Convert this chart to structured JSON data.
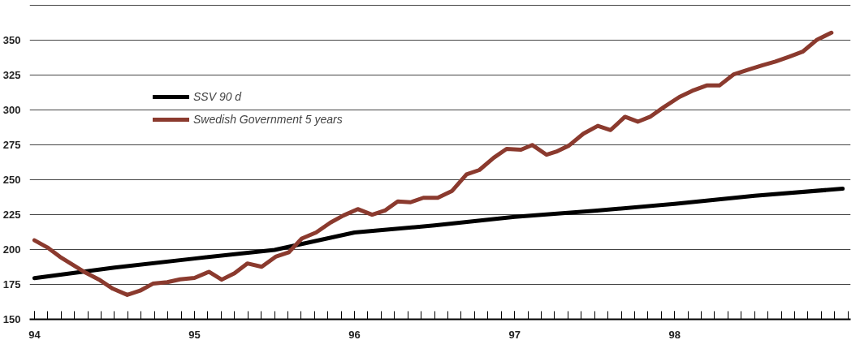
{
  "chart_data": {
    "type": "line",
    "xlim": [
      93.97,
      99.1
    ],
    "ylim": [
      150,
      376
    ],
    "xticks": [
      {
        "value": 94,
        "label": "94"
      },
      {
        "value": 95,
        "label": "95"
      },
      {
        "value": 96,
        "label": "96"
      },
      {
        "value": 97,
        "label": "97"
      },
      {
        "value": 98,
        "label": "98"
      }
    ],
    "yticks": [
      150,
      175,
      200,
      225,
      250,
      275,
      300,
      325,
      350,
      {
        "value": 375,
        "label": null
      }
    ],
    "grid": "y",
    "legend": "top left",
    "line_style": "solid",
    "marker": "none",
    "series": [
      {
        "name": "SSV 90 d",
        "color": "#000000",
        "x": [
          94.0,
          94.5,
          95.0,
          95.5,
          96.0,
          96.5,
          97.0,
          97.5,
          98.0,
          98.5,
          99.05
        ],
        "values": [
          179.5,
          187,
          193.5,
          199.7,
          212.2,
          217.2,
          223.4,
          227.7,
          232.7,
          238.5,
          243.5
        ]
      },
      {
        "name": "Swedish Government 5 years",
        "color": "#8b3a2e",
        "x": [
          94.0,
          94.08,
          94.16,
          94.24,
          94.32,
          94.41,
          94.49,
          94.58,
          94.66,
          94.74,
          94.83,
          94.91,
          95.0,
          95.09,
          95.17,
          95.25,
          95.33,
          95.42,
          95.51,
          95.59,
          95.67,
          95.76,
          95.85,
          95.93,
          96.02,
          96.11,
          96.19,
          96.27,
          96.35,
          96.43,
          96.52,
          96.61,
          96.7,
          96.78,
          96.87,
          96.95,
          97.04,
          97.11,
          97.2,
          97.26,
          97.34,
          97.43,
          97.52,
          97.6,
          97.69,
          97.77,
          97.85,
          97.93,
          98.03,
          98.11,
          98.2,
          98.28,
          98.37,
          98.46,
          98.55,
          98.63,
          98.72,
          98.8,
          98.89,
          98.98
        ],
        "values": [
          206.6,
          201.5,
          194.7,
          189,
          183.4,
          178,
          171.9,
          167.5,
          170.5,
          175.5,
          176.6,
          178.6,
          179.6,
          184,
          178.4,
          183,
          190,
          187.6,
          195,
          198,
          207.8,
          212.2,
          219.3,
          224.3,
          228.9,
          224.9,
          227.9,
          234.4,
          233.8,
          237,
          237,
          242,
          253.8,
          256.9,
          265.7,
          272,
          271.4,
          274.8,
          267.8,
          270,
          274.4,
          282.9,
          288.5,
          285.5,
          295,
          291.5,
          295.2,
          301.7,
          309.2,
          313.6,
          317.4,
          317.4,
          325.4,
          328.7,
          331.9,
          334.5,
          338.2,
          341.6,
          350.2,
          355.2
        ]
      }
    ]
  }
}
